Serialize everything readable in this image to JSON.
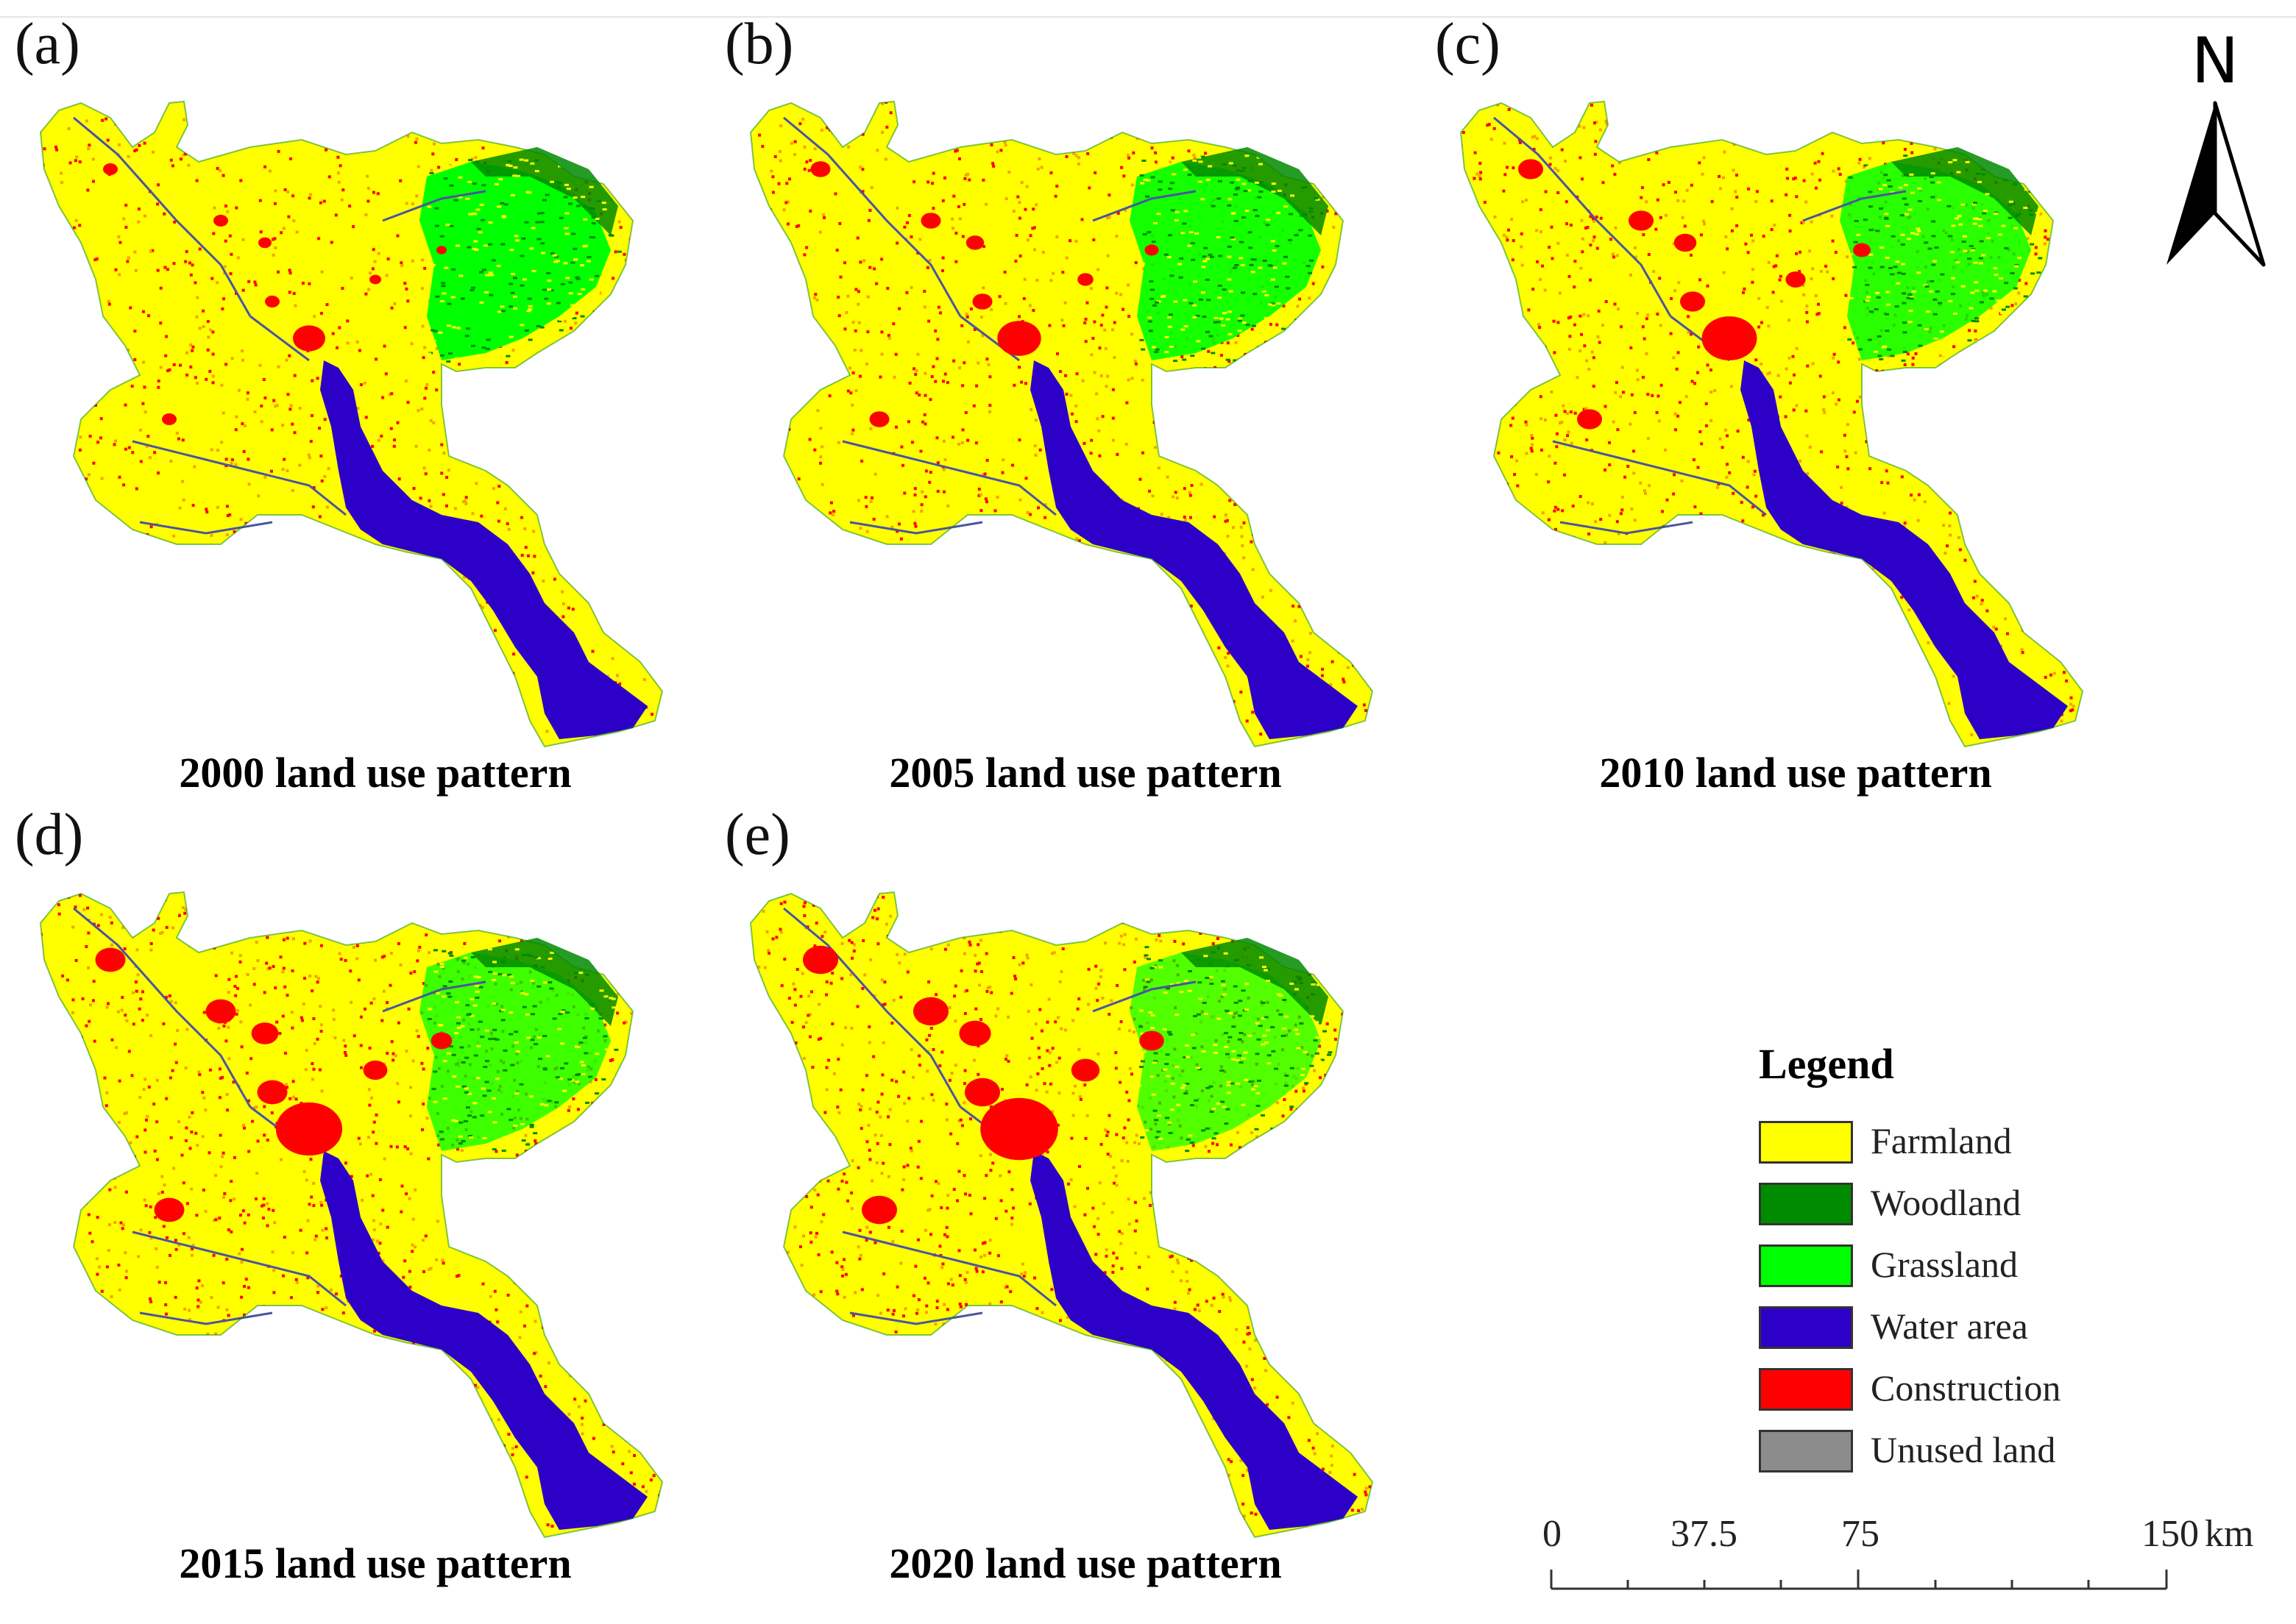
{
  "panels": [
    {
      "letter": "(a)",
      "caption": "2000 land use pattern",
      "construction_level": 0
    },
    {
      "letter": "(b)",
      "caption": "2005 land use pattern",
      "construction_level": 1
    },
    {
      "letter": "(c)",
      "caption": "2010 land use pattern",
      "construction_level": 2
    },
    {
      "letter": "(d)",
      "caption": "2015 land use pattern",
      "construction_level": 3
    },
    {
      "letter": "(e)",
      "caption": "2020 land use pattern",
      "construction_level": 4
    }
  ],
  "north_arrow": {
    "label": "N"
  },
  "legend": {
    "title": "Legend",
    "items": [
      {
        "label": "Farmland",
        "color": "#ffff00"
      },
      {
        "label": "Woodland",
        "color": "#008a00"
      },
      {
        "label": "Grassland",
        "color": "#00ff00"
      },
      {
        "label": "Water area",
        "color": "#2d00c8"
      },
      {
        "label": "Construction",
        "color": "#ff0000"
      },
      {
        "label": "Unused land",
        "color": "#8c8c8c"
      }
    ]
  },
  "scale_bar": {
    "labels": [
      "0",
      "37.5",
      "75",
      "150"
    ],
    "unit": "km"
  },
  "colors": {
    "farmland": "#ffff00",
    "farmland_speckle": "#f4a300",
    "woodland": "#008a00",
    "grassland": "#00ff00",
    "water": "#2d00c8",
    "construction": "#ff0000",
    "river_line": "#4a55a0"
  }
}
